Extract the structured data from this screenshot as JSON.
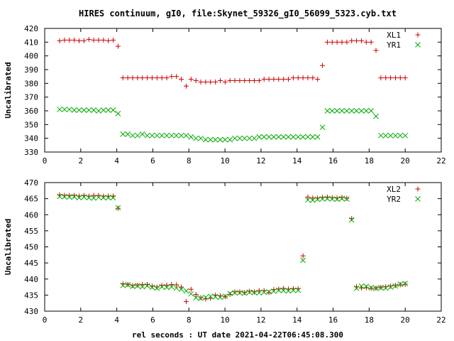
{
  "figure": {
    "title": "HIRES continuum, gI0, file:Skynet_59326_gI0_56099_5323.cyb.txt",
    "xlabel": "rel seconds : UT date 2021-04-22T06:45:08.300"
  },
  "chart_data": [
    {
      "type": "scatter",
      "ylabel": "Uncalibrated",
      "xlim": [
        0,
        22
      ],
      "ylim": [
        330,
        420
      ],
      "xticks": [
        0,
        2,
        4,
        6,
        8,
        10,
        12,
        14,
        16,
        18,
        20,
        22
      ],
      "yticks": [
        330,
        340,
        350,
        360,
        370,
        380,
        390,
        400,
        410,
        420
      ],
      "grid": false,
      "legend": "top-right",
      "x": [
        0.83,
        1.1,
        1.37,
        1.64,
        1.91,
        2.18,
        2.45,
        2.72,
        2.99,
        3.26,
        3.53,
        3.8,
        4.07,
        4.34,
        4.61,
        4.88,
        5.15,
        5.42,
        5.69,
        5.96,
        6.23,
        6.5,
        6.77,
        7.04,
        7.31,
        7.58,
        7.85,
        8.12,
        8.39,
        8.66,
        8.93,
        9.2,
        9.47,
        9.74,
        10.01,
        10.28,
        10.55,
        10.82,
        11.09,
        11.36,
        11.63,
        11.9,
        12.17,
        12.44,
        12.71,
        12.98,
        13.25,
        13.52,
        13.79,
        14.06,
        14.33,
        14.6,
        14.87,
        15.14,
        15.41,
        15.68,
        15.95,
        16.22,
        16.49,
        16.76,
        17.03,
        17.3,
        17.57,
        17.84,
        18.11,
        18.38,
        18.65,
        18.92,
        19.19,
        19.46,
        19.73,
        20.0
      ],
      "series": [
        {
          "name": "XL1",
          "color": "#cc0000",
          "marker": "plus",
          "values": [
            411,
            411.5,
            411.5,
            411.5,
            411,
            411,
            412,
            411.5,
            411.5,
            411.5,
            411,
            411.5,
            407,
            384,
            384,
            384,
            384,
            384,
            384,
            384,
            384,
            384,
            384,
            385,
            385,
            383,
            378,
            383,
            382,
            381,
            381,
            381,
            381,
            382,
            381,
            382,
            382,
            382,
            382,
            382,
            382,
            382,
            383,
            383,
            383,
            383,
            383,
            383,
            384,
            384,
            384,
            384,
            384,
            383,
            393,
            410,
            410,
            410,
            410,
            410,
            411,
            411,
            411,
            410,
            410,
            404,
            384,
            384,
            384,
            384,
            384,
            384
          ]
        },
        {
          "name": "YR1",
          "color": "#00aa00",
          "marker": "cross",
          "values": [
            361,
            361,
            361,
            360.5,
            360.5,
            360.5,
            360.5,
            360.5,
            360,
            360.5,
            360.5,
            360.5,
            358,
            343,
            343,
            342,
            342,
            343,
            342,
            342,
            342,
            342,
            342,
            342,
            342,
            342,
            342,
            341,
            340,
            340,
            339,
            339,
            339,
            339,
            339,
            339,
            340,
            340,
            340,
            340,
            340,
            341,
            341,
            341,
            341,
            341,
            341,
            341,
            341,
            341,
            341,
            341,
            341,
            341,
            348,
            360,
            360,
            360,
            360,
            360,
            360,
            360,
            360,
            360,
            360,
            356,
            342,
            342,
            342,
            342,
            342,
            342
          ]
        }
      ]
    },
    {
      "type": "scatter",
      "ylabel": "Uncalibrated",
      "xlim": [
        0,
        22
      ],
      "ylim": [
        430,
        470
      ],
      "xticks": [
        0,
        2,
        4,
        6,
        8,
        10,
        12,
        14,
        16,
        18,
        20,
        22
      ],
      "yticks": [
        430,
        435,
        440,
        445,
        450,
        455,
        460,
        465,
        470
      ],
      "grid": false,
      "legend": "top-right",
      "x": [
        0.83,
        1.1,
        1.37,
        1.64,
        1.91,
        2.18,
        2.45,
        2.72,
        2.99,
        3.26,
        3.53,
        3.8,
        4.07,
        4.34,
        4.61,
        4.88,
        5.15,
        5.42,
        5.69,
        5.96,
        6.23,
        6.5,
        6.77,
        7.04,
        7.31,
        7.58,
        7.85,
        8.12,
        8.39,
        8.66,
        8.93,
        9.2,
        9.47,
        9.74,
        10.01,
        10.28,
        10.55,
        10.82,
        11.09,
        11.36,
        11.63,
        11.9,
        12.17,
        12.44,
        12.71,
        12.98,
        13.25,
        13.52,
        13.79,
        14.06,
        14.33,
        14.6,
        14.87,
        15.14,
        15.41,
        15.68,
        15.95,
        16.22,
        16.49,
        16.76,
        17.03,
        17.3,
        17.57,
        17.84,
        18.11,
        18.38,
        18.65,
        18.92,
        19.19,
        19.46,
        19.73,
        20.0
      ],
      "series": [
        {
          "name": "XL2",
          "color": "#cc0000",
          "marker": "plus",
          "values": [
            466.2,
            466,
            466,
            466,
            465.8,
            466,
            465.8,
            466,
            466,
            465.8,
            465.8,
            465.8,
            462,
            438.5,
            438.3,
            438,
            438.1,
            438.3,
            438.3,
            437.8,
            437.5,
            438,
            438.1,
            438.3,
            438.2,
            437.5,
            433,
            436.8,
            435.2,
            434.2,
            433.8,
            434,
            435,
            434.8,
            434.5,
            435.2,
            436,
            436,
            435.8,
            436.2,
            436,
            436.4,
            436.4,
            435.8,
            436.7,
            436.9,
            437.1,
            436.9,
            437,
            437,
            447.2,
            465.5,
            465.2,
            465.2,
            465.4,
            465.5,
            465.3,
            465.2,
            465.4,
            465.1,
            458.8,
            437.6,
            437.2,
            437.3,
            437.1,
            437.2,
            437.4,
            437.6,
            437.8,
            438,
            438.2,
            438.4
          ]
        },
        {
          "name": "YR2",
          "color": "#00aa00",
          "marker": "cross",
          "values": [
            465.7,
            465.6,
            465.5,
            465.6,
            465.3,
            465.5,
            465.3,
            465.2,
            465.4,
            465.3,
            465.3,
            465.3,
            462.2,
            438,
            438.2,
            437.7,
            437.9,
            437.6,
            437.9,
            437.4,
            437.2,
            437.6,
            437.4,
            437.6,
            437.2,
            436.8,
            436.3,
            435.4,
            434.2,
            434,
            434.3,
            434.6,
            434.5,
            434.3,
            434.6,
            435.5,
            435.7,
            435.7,
            435.6,
            435.9,
            435.8,
            435.7,
            435.9,
            436,
            436.2,
            436.5,
            436.4,
            436.3,
            436.5,
            436.5,
            445.8,
            464.6,
            464.5,
            464.8,
            464.9,
            465,
            464.9,
            464.8,
            465,
            464.9,
            458.4,
            437.1,
            437.8,
            437.7,
            437.3,
            437.1,
            437.3,
            437.2,
            437.5,
            437.8,
            438.4,
            438.6
          ]
        }
      ]
    }
  ]
}
